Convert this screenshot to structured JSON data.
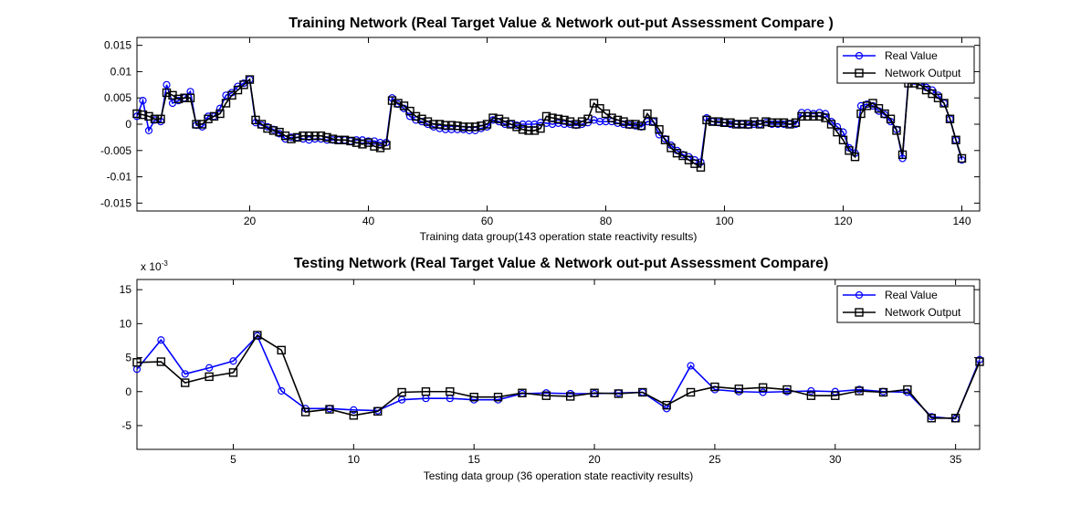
{
  "colors": {
    "real": "#0000ff",
    "network": "#000000",
    "axes": "#000000",
    "background": "#ffffff"
  },
  "chart_data": [
    {
      "type": "line",
      "title": "Training Network (Real Target Value & Network out-put Assessment Compare )",
      "xlabel": "Training data group(143 operation state reactivity results)",
      "ylabel": "",
      "exponent_label": "",
      "xlim": [
        1,
        143
      ],
      "ylim": [
        -0.0165,
        0.0165
      ],
      "xticks": [
        20,
        40,
        60,
        80,
        100,
        120,
        140
      ],
      "xtick_labels": [
        "20",
        "40",
        "60",
        "80",
        "100",
        "120",
        "140"
      ],
      "yticks": [
        -0.015,
        -0.01,
        -0.005,
        0,
        0.005,
        0.01,
        0.015
      ],
      "ytick_labels": [
        "-0.015",
        "-0.01",
        "-0.005",
        "0",
        "0.005",
        "0.01",
        "0.015"
      ],
      "legend_position": "top-right",
      "series": [
        {
          "name": "Real Value",
          "color": "#0000ff",
          "marker": "circle",
          "values": [
            0.0015,
            0.0045,
            -0.0012,
            0.0008,
            0.0005,
            0.0075,
            0.004,
            0.0045,
            0.005,
            0.0062,
            -0.0002,
            -0.0005,
            0.0015,
            0.0015,
            0.003,
            0.0055,
            0.006,
            0.0072,
            0.0078,
            0.0085,
            0.0003,
            -0.0002,
            -0.0005,
            -0.001,
            -0.0018,
            -0.0028,
            -0.0025,
            -0.0025,
            -0.0028,
            -0.003,
            -0.0028,
            -0.0028,
            -0.003,
            -0.003,
            -0.003,
            -0.003,
            -0.0032,
            -0.003,
            -0.003,
            -0.0032,
            -0.0032,
            -0.0035,
            -0.0035,
            0.005,
            0.0038,
            0.003,
            0.0015,
            0.0008,
            0.0005,
            0.0,
            -0.0005,
            -0.0008,
            -0.001,
            -0.001,
            -0.001,
            -0.001,
            -0.0012,
            -0.0012,
            -0.0008,
            -0.0005,
            0.0008,
            0.0005,
            0.0,
            0.0,
            -0.0002,
            0.0,
            0.0,
            0.0,
            0.0003,
            0.0002,
            0.0,
            0.0002,
            0.0,
            0.0,
            -0.0002,
            0.0,
            0.0003,
            0.0008,
            0.0005,
            0.0005,
            0.0005,
            0.0002,
            0.0,
            -0.0002,
            -0.0003,
            -0.0005,
            0.0005,
            0.0005,
            -0.002,
            -0.0028,
            -0.004,
            -0.005,
            -0.0058,
            -0.0062,
            -0.0068,
            -0.0072,
            0.0012,
            0.0005,
            0.0003,
            0.0003,
            0.0,
            0.0,
            0.0,
            -0.0002,
            0.0,
            0.0,
            0.0003,
            0.0,
            0.0,
            0.0,
            0.0,
            0.0,
            0.0022,
            0.0022,
            0.002,
            0.0022,
            0.002,
            0.0005,
            -0.0005,
            -0.0015,
            -0.0045,
            -0.0055,
            0.0035,
            0.0038,
            0.0035,
            0.0025,
            0.0018,
            0.0005,
            -0.001,
            -0.0065,
            0.0085,
            0.0082,
            0.008,
            0.007,
            0.0065,
            0.0055,
            0.004,
            0.001,
            -0.003,
            -0.0068
          ]
        },
        {
          "name": "Network Output",
          "color": "#000000",
          "marker": "square",
          "values": [
            0.002,
            0.0018,
            0.0015,
            0.001,
            0.001,
            0.006,
            0.0055,
            0.0048,
            0.005,
            0.005,
            0.0,
            0.0,
            0.001,
            0.0015,
            0.002,
            0.004,
            0.0055,
            0.0065,
            0.0075,
            0.0085,
            0.0008,
            0.0,
            -0.0008,
            -0.0012,
            -0.0015,
            -0.0022,
            -0.0028,
            -0.0025,
            -0.0022,
            -0.0022,
            -0.0022,
            -0.0022,
            -0.0025,
            -0.0028,
            -0.003,
            -0.003,
            -0.0032,
            -0.0035,
            -0.0038,
            -0.0035,
            -0.0042,
            -0.0045,
            -0.004,
            0.0045,
            0.004,
            0.0035,
            0.0025,
            0.0015,
            0.001,
            0.0005,
            0.0,
            0.0,
            -0.0002,
            -0.0002,
            -0.0003,
            -0.0005,
            -0.0005,
            -0.0005,
            -0.0003,
            0.0,
            0.0012,
            0.001,
            0.0005,
            0.0,
            -0.0005,
            -0.001,
            -0.0012,
            -0.0012,
            -0.0008,
            0.0015,
            0.0012,
            0.001,
            0.0008,
            0.0005,
            0.0,
            0.0005,
            0.001,
            0.004,
            0.003,
            0.002,
            0.0012,
            0.0008,
            0.0005,
            0.0,
            0.0,
            -0.0003,
            0.002,
            0.0005,
            -0.001,
            -0.003,
            -0.0045,
            -0.0055,
            -0.006,
            -0.0068,
            -0.0075,
            -0.0082,
            0.0008,
            0.0005,
            0.0005,
            0.0003,
            0.0003,
            0.0,
            0.0,
            0.0,
            0.0005,
            0.0,
            0.0005,
            0.0003,
            0.0003,
            0.0003,
            0.0,
            0.0003,
            0.0015,
            0.0015,
            0.0015,
            0.0015,
            0.0012,
            0.0,
            -0.0015,
            -0.003,
            -0.005,
            -0.0062,
            0.002,
            0.0035,
            0.004,
            0.003,
            0.002,
            0.001,
            -0.0012,
            -0.0058,
            0.0078,
            0.0078,
            0.0075,
            0.0065,
            0.0058,
            0.005,
            0.004,
            0.001,
            -0.003,
            -0.0065
          ]
        }
      ]
    },
    {
      "type": "line",
      "title": "Testing Network (Real Target Value & Network out-put Assessment Compare)",
      "xlabel": "Testing data group (36 operation state reactivity results)",
      "ylabel": "",
      "exponent_label": "x 10",
      "exponent_sup": "-3",
      "xlim": [
        1,
        36
      ],
      "ylim": [
        -8.5,
        16.5
      ],
      "xticks": [
        5,
        10,
        15,
        20,
        25,
        30,
        35
      ],
      "xtick_labels": [
        "5",
        "10",
        "15",
        "20",
        "25",
        "30",
        "35"
      ],
      "yticks": [
        -5,
        0,
        5,
        10,
        15
      ],
      "ytick_labels": [
        "-5",
        "0",
        "5",
        "10",
        "15"
      ],
      "legend_position": "top-right",
      "series": [
        {
          "name": "Real Value",
          "color": "#0000ff",
          "marker": "circle",
          "values": [
            3.3,
            7.6,
            2.6,
            3.5,
            4.5,
            8.2,
            0.1,
            -2.5,
            -2.5,
            -2.7,
            -2.8,
            -1.2,
            -1.0,
            -1.0,
            -1.2,
            -1.2,
            -0.3,
            -0.2,
            -0.3,
            -0.3,
            -0.2,
            -0.1,
            -2.5,
            3.8,
            0.3,
            0.0,
            -0.1,
            0.0,
            0.1,
            0.0,
            0.3,
            0.0,
            -0.1,
            -3.7,
            -4.0,
            4.7
          ]
        },
        {
          "name": "Network Output",
          "color": "#000000",
          "marker": "square",
          "values": [
            4.3,
            4.4,
            1.3,
            2.2,
            2.8,
            8.3,
            6.1,
            -3.0,
            -2.6,
            -3.5,
            -2.9,
            -0.1,
            0.0,
            0.0,
            -0.8,
            -0.8,
            -0.2,
            -0.6,
            -0.7,
            -0.2,
            -0.3,
            -0.1,
            -2.0,
            -0.1,
            0.7,
            0.4,
            0.6,
            0.3,
            -0.6,
            -0.6,
            0.1,
            -0.1,
            0.3,
            -3.9,
            -3.9,
            4.4
          ]
        }
      ]
    }
  ]
}
